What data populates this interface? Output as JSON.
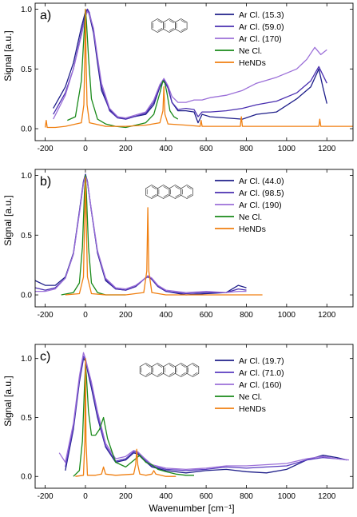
{
  "figure": {
    "xlabel": "Wavenumber [cm⁻¹]",
    "ylabel": "Signal [a.u.]"
  },
  "chart_data": [
    {
      "type": "line",
      "panel_label": "a)",
      "ylabel": "Signal [a.u.]",
      "xlim": [
        -250,
        1330
      ],
      "ylim": [
        -0.1,
        1.05
      ],
      "xticks": [
        -200,
        0,
        200,
        400,
        600,
        800,
        1000,
        1200
      ],
      "yticks": [
        0.0,
        0.5,
        1.0
      ],
      "tick_labels_x": [
        "-200",
        "0",
        "200",
        "400",
        "600",
        "800",
        "1000",
        "1200"
      ],
      "tick_labels_y": [
        "0.0",
        "0.5",
        "1.0"
      ],
      "legend_position": "top-right",
      "molecule_icon": "anthracene-structure",
      "series": [
        {
          "name": "Ar Cl. (15.3)",
          "color": "#1f1f8a",
          "x": [
            -160,
            -100,
            -60,
            -20,
            0,
            10,
            20,
            40,
            60,
            80,
            120,
            160,
            200,
            240,
            300,
            340,
            370,
            390,
            410,
            430,
            460,
            500,
            540,
            560,
            580,
            620,
            700,
            780,
            850,
            950,
            1050,
            1120,
            1160,
            1180,
            1200
          ],
          "y": [
            0.17,
            0.35,
            0.55,
            0.85,
            0.98,
            1.0,
            0.95,
            0.8,
            0.55,
            0.32,
            0.16,
            0.1,
            0.08,
            0.1,
            0.12,
            0.2,
            0.35,
            0.41,
            0.35,
            0.22,
            0.15,
            0.15,
            0.14,
            0.05,
            0.12,
            0.1,
            0.09,
            0.08,
            0.12,
            0.14,
            0.25,
            0.35,
            0.5,
            0.35,
            0.21
          ]
        },
        {
          "name": "Ar Cl. (59.0)",
          "color": "#4a2fb0",
          "x": [
            -160,
            -100,
            -60,
            -20,
            0,
            10,
            20,
            40,
            60,
            80,
            120,
            160,
            200,
            240,
            300,
            340,
            370,
            390,
            410,
            430,
            460,
            500,
            540,
            560,
            580,
            620,
            700,
            780,
            850,
            950,
            1050,
            1120,
            1160,
            1180,
            1200
          ],
          "y": [
            0.12,
            0.3,
            0.5,
            0.8,
            0.96,
            1.0,
            0.97,
            0.82,
            0.58,
            0.35,
            0.15,
            0.09,
            0.08,
            0.1,
            0.13,
            0.22,
            0.36,
            0.4,
            0.34,
            0.22,
            0.16,
            0.17,
            0.16,
            0.1,
            0.14,
            0.14,
            0.15,
            0.17,
            0.2,
            0.23,
            0.3,
            0.4,
            0.52,
            0.45,
            0.38
          ]
        },
        {
          "name": "Ar Cl. (170)",
          "color": "#9b6fd8",
          "x": [
            -160,
            -100,
            -60,
            -20,
            0,
            10,
            20,
            40,
            60,
            80,
            120,
            160,
            200,
            240,
            300,
            340,
            370,
            390,
            410,
            430,
            460,
            500,
            540,
            580,
            620,
            700,
            780,
            850,
            950,
            1050,
            1100,
            1140,
            1170,
            1200
          ],
          "y": [
            0.08,
            0.28,
            0.5,
            0.78,
            0.94,
            0.98,
            0.96,
            0.84,
            0.6,
            0.38,
            0.17,
            0.1,
            0.09,
            0.11,
            0.14,
            0.24,
            0.37,
            0.42,
            0.36,
            0.27,
            0.22,
            0.22,
            0.24,
            0.24,
            0.26,
            0.28,
            0.32,
            0.38,
            0.43,
            0.5,
            0.58,
            0.68,
            0.62,
            0.66
          ]
        },
        {
          "name": "Ne Cl.",
          "color": "#1a8a1a",
          "x": [
            -90,
            -50,
            -20,
            -5,
            0,
            5,
            15,
            30,
            60,
            100,
            150,
            200,
            250,
            300,
            340,
            370,
            385,
            395,
            405,
            420,
            440,
            460
          ],
          "y": [
            0.07,
            0.1,
            0.4,
            0.85,
            1.0,
            0.9,
            0.6,
            0.25,
            0.08,
            0.04,
            0.02,
            0.01,
            0.03,
            0.05,
            0.12,
            0.3,
            0.4,
            0.38,
            0.3,
            0.15,
            0.1,
            0.08
          ]
        },
        {
          "name": "HeNDs",
          "color": "#f07f10",
          "x": [
            -200,
            -195,
            -190,
            -150,
            -100,
            -20,
            -8,
            -3,
            0,
            3,
            8,
            20,
            100,
            200,
            300,
            370,
            385,
            390,
            395,
            410,
            500,
            570,
            575,
            580,
            700,
            770,
            775,
            780,
            900,
            1000,
            1160,
            1165,
            1170,
            1250,
            1330
          ],
          "y": [
            0.01,
            0.07,
            0.01,
            0.01,
            0.02,
            0.05,
            0.2,
            0.6,
            1.0,
            0.6,
            0.2,
            0.05,
            0.02,
            0.02,
            0.03,
            0.05,
            0.15,
            0.35,
            0.12,
            0.04,
            0.03,
            0.02,
            0.07,
            0.02,
            0.02,
            0.02,
            0.1,
            0.02,
            0.02,
            0.02,
            0.02,
            0.08,
            0.02,
            0.02,
            0.02
          ]
        }
      ]
    },
    {
      "type": "line",
      "panel_label": "b)",
      "ylabel": "Signal [a.u.]",
      "xlim": [
        -250,
        1330
      ],
      "ylim": [
        -0.1,
        1.05
      ],
      "xticks": [
        -200,
        0,
        200,
        400,
        600,
        800,
        1000,
        1200
      ],
      "yticks": [
        0.0,
        0.5,
        1.0
      ],
      "tick_labels_x": [
        "-200",
        "0",
        "200",
        "400",
        "600",
        "800",
        "1000",
        "1200"
      ],
      "tick_labels_y": [
        "0.0",
        "0.5",
        "1.0"
      ],
      "legend_position": "top-right",
      "molecule_icon": "tetracene-structure",
      "series": [
        {
          "name": "Ar Cl. (44.0)",
          "color": "#1f1f8a",
          "x": [
            -250,
            -200,
            -150,
            -100,
            -60,
            -30,
            -10,
            0,
            10,
            30,
            60,
            100,
            150,
            200,
            250,
            290,
            310,
            330,
            360,
            400,
            500,
            600,
            700,
            760,
            800
          ],
          "y": [
            0.12,
            0.08,
            0.08,
            0.15,
            0.35,
            0.7,
            0.95,
            1.01,
            0.95,
            0.7,
            0.35,
            0.12,
            0.05,
            0.04,
            0.07,
            0.13,
            0.16,
            0.13,
            0.07,
            0.03,
            0.0,
            0.01,
            0.02,
            0.08,
            0.06
          ]
        },
        {
          "name": "Ar Cl. (98.5)",
          "color": "#4a2fb0",
          "x": [
            -250,
            -200,
            -150,
            -100,
            -60,
            -30,
            -10,
            0,
            10,
            30,
            60,
            100,
            150,
            200,
            250,
            290,
            310,
            330,
            360,
            400,
            500,
            600,
            700,
            760,
            800
          ],
          "y": [
            0.06,
            0.04,
            0.06,
            0.14,
            0.34,
            0.69,
            0.94,
            1.0,
            0.94,
            0.7,
            0.36,
            0.13,
            0.05,
            0.04,
            0.07,
            0.13,
            0.15,
            0.13,
            0.07,
            0.03,
            0.01,
            0.02,
            0.02,
            0.05,
            0.04
          ]
        },
        {
          "name": "Ar Cl. (190)",
          "color": "#9b6fd8",
          "x": [
            -250,
            -200,
            -150,
            -100,
            -60,
            -30,
            -10,
            0,
            10,
            30,
            60,
            100,
            150,
            200,
            250,
            290,
            310,
            330,
            360,
            400,
            500,
            600,
            700,
            760,
            800
          ],
          "y": [
            0.03,
            0.03,
            0.05,
            0.14,
            0.34,
            0.68,
            0.93,
            1.0,
            0.94,
            0.71,
            0.37,
            0.14,
            0.06,
            0.05,
            0.08,
            0.13,
            0.16,
            0.14,
            0.08,
            0.04,
            0.02,
            0.03,
            0.02,
            0.03,
            0.03
          ]
        },
        {
          "name": "Ne Cl.",
          "color": "#1a8a1a",
          "x": [
            -120,
            -60,
            -30,
            -15,
            -5,
            0,
            5,
            15,
            30,
            60,
            100,
            200
          ],
          "y": [
            0.0,
            0.02,
            0.1,
            0.4,
            0.85,
            1.0,
            0.85,
            0.4,
            0.1,
            0.02,
            0.0,
            0.0
          ]
        },
        {
          "name": "HeNDs",
          "color": "#f07f10",
          "x": [
            -100,
            -30,
            -10,
            -3,
            0,
            3,
            10,
            30,
            100,
            200,
            290,
            305,
            310,
            315,
            330,
            400,
            500,
            600,
            700,
            880
          ],
          "y": [
            0.0,
            0.01,
            0.15,
            0.7,
            0.98,
            0.7,
            0.15,
            0.01,
            0.0,
            0.0,
            0.02,
            0.2,
            0.73,
            0.2,
            0.02,
            0.0,
            0.0,
            0.0,
            0.0,
            0.0
          ]
        }
      ]
    },
    {
      "type": "line",
      "panel_label": "c)",
      "ylabel": "Signal [a.u.]",
      "xlabel": "Wavenumber [cm⁻¹]",
      "xlim": [
        -250,
        1330
      ],
      "ylim": [
        -0.1,
        1.12
      ],
      "xticks": [
        -200,
        0,
        200,
        400,
        600,
        800,
        1000,
        1200
      ],
      "yticks": [
        0.0,
        0.5,
        1.0
      ],
      "tick_labels_x": [
        "-200",
        "0",
        "200",
        "400",
        "600",
        "800",
        "1000",
        "1200"
      ],
      "tick_labels_y": [
        "0.0",
        "0.5",
        "1.0"
      ],
      "legend_position": "top-right",
      "molecule_icon": "pentacene-structure",
      "series": [
        {
          "name": "Ar Cl. (19.7)",
          "color": "#1f1f8a",
          "x": [
            -100,
            -60,
            -30,
            -10,
            0,
            10,
            30,
            60,
            100,
            150,
            200,
            240,
            260,
            290,
            330,
            400,
            500,
            600,
            700,
            800,
            900,
            1000,
            1100,
            1180,
            1250,
            1300
          ],
          "y": [
            0.05,
            0.4,
            0.8,
            1.0,
            0.98,
            0.9,
            0.75,
            0.5,
            0.25,
            0.12,
            0.14,
            0.2,
            0.19,
            0.14,
            0.08,
            0.05,
            0.03,
            0.05,
            0.06,
            0.04,
            0.03,
            0.06,
            0.14,
            0.18,
            0.16,
            0.14
          ]
        },
        {
          "name": "Ar Cl. (71.0)",
          "color": "#5a3cc0",
          "x": [
            -100,
            -60,
            -30,
            -10,
            0,
            10,
            30,
            60,
            100,
            150,
            200,
            240,
            260,
            290,
            330,
            400,
            500,
            600,
            700,
            800,
            900,
            1000,
            1100,
            1180,
            1250,
            1300
          ],
          "y": [
            0.08,
            0.42,
            0.82,
            1.02,
            0.99,
            0.92,
            0.78,
            0.52,
            0.26,
            0.13,
            0.15,
            0.21,
            0.2,
            0.15,
            0.09,
            0.06,
            0.05,
            0.06,
            0.08,
            0.07,
            0.08,
            0.09,
            0.14,
            0.16,
            0.15,
            0.14
          ]
        },
        {
          "name": "Ar Cl. (160)",
          "color": "#9b6fd8",
          "x": [
            -130,
            -100,
            -60,
            -30,
            -10,
            0,
            10,
            30,
            60,
            100,
            150,
            200,
            240,
            260,
            290,
            330,
            400,
            500,
            600,
            700,
            800,
            900,
            1000,
            1100,
            1180,
            1250,
            1310
          ],
          "y": [
            0.2,
            0.12,
            0.45,
            0.85,
            1.05,
            1.0,
            0.93,
            0.8,
            0.55,
            0.28,
            0.15,
            0.17,
            0.22,
            0.21,
            0.16,
            0.1,
            0.07,
            0.06,
            0.07,
            0.09,
            0.09,
            0.1,
            0.11,
            0.15,
            0.17,
            0.15,
            0.14
          ]
        },
        {
          "name": "Ne Cl.",
          "color": "#1a8a1a",
          "x": [
            -60,
            -30,
            -15,
            -5,
            0,
            5,
            15,
            30,
            50,
            70,
            90,
            110,
            150,
            200,
            250,
            270,
            300,
            330,
            360,
            400,
            450,
            500,
            540
          ],
          "y": [
            0.0,
            0.05,
            0.3,
            0.75,
            0.95,
            0.85,
            0.55,
            0.35,
            0.35,
            0.4,
            0.5,
            0.32,
            0.12,
            0.08,
            0.15,
            0.18,
            0.12,
            0.1,
            0.06,
            0.04,
            0.02,
            0.01,
            0.01
          ]
        },
        {
          "name": "HeNDs",
          "color": "#f07f10",
          "x": [
            -50,
            -10,
            -3,
            0,
            3,
            10,
            50,
            80,
            90,
            100,
            150,
            240,
            250,
            255,
            260,
            270,
            300,
            330,
            340,
            350,
            400,
            450
          ],
          "y": [
            0.0,
            0.01,
            0.3,
            1.0,
            0.3,
            0.01,
            0.01,
            0.02,
            0.08,
            0.02,
            0.01,
            0.02,
            0.1,
            0.23,
            0.1,
            0.02,
            0.01,
            0.02,
            0.05,
            0.02,
            0.0,
            0.0
          ]
        }
      ]
    }
  ]
}
